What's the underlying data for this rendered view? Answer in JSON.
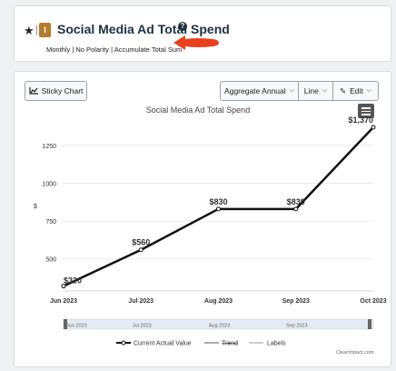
{
  "header": {
    "title": "Social Media Ad Total Spend",
    "badge_letter": "I",
    "subtitle": "Monthly | No Polarity | Accumulate Total Sum"
  },
  "toolbar": {
    "sticky_label": "Sticky Chart",
    "aggregate_label": "Aggregate Annual",
    "line_label": "Line",
    "edit_label": "Edit"
  },
  "chart_data": {
    "type": "line",
    "title": "Social Media Ad Total Spend",
    "ylabel": "$",
    "ylim": [
      300,
      1400
    ],
    "yticks": [
      500,
      750,
      1000,
      1250
    ],
    "categories": [
      "Jun 2023",
      "Jul 2023",
      "Aug 2023",
      "Sep 2023",
      "Oct 2023"
    ],
    "series": [
      {
        "name": "Current Actual Value",
        "values": [
          320,
          560,
          830,
          830,
          1370
        ],
        "labels": [
          "$320",
          "$560",
          "$830",
          "$830",
          "$1,370"
        ]
      }
    ],
    "navigator_labels": [
      "Jun 2023",
      "Jul 2023",
      "Aug 2023",
      "Sep 2023"
    ],
    "legend": [
      "Current Actual Value",
      "Trend",
      "Labels"
    ],
    "legend_position": "bottom"
  },
  "footer": "ClearImpact.com",
  "colors": {
    "accent": "#b57b2c",
    "arrow": "#e8401c",
    "line": "#111111"
  }
}
